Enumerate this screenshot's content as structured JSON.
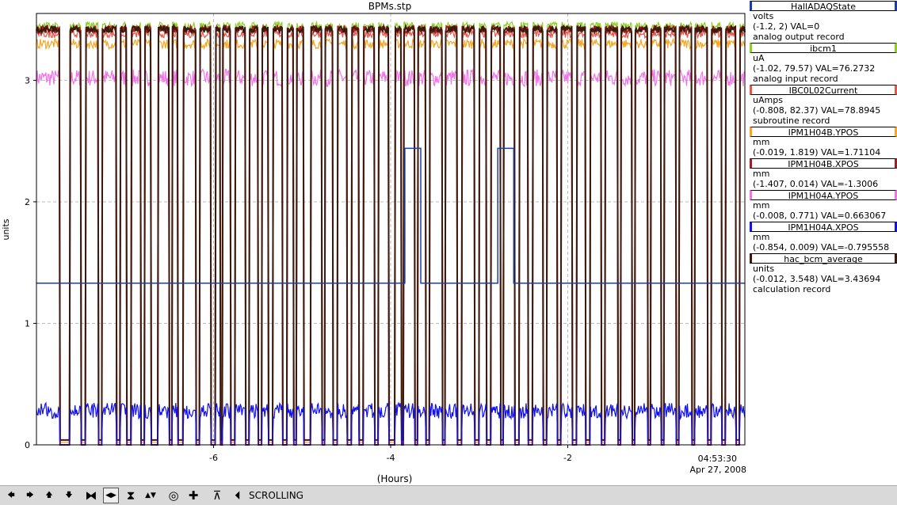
{
  "chart_data": {
    "type": "line",
    "title": "BPMs.stp",
    "xlabel": "(Hours)",
    "ylabel": "units",
    "xlim": [
      -8.0,
      0.0
    ],
    "ylim": [
      0.0,
      3.55
    ],
    "x_ticks": [
      -6,
      -4,
      -2
    ],
    "x_tick_labels": [
      "-6",
      "-4",
      "-2"
    ],
    "y_ticks": [
      0,
      1,
      2,
      3
    ],
    "y_tick_labels": [
      "0",
      "1",
      "2",
      "3"
    ],
    "end_time": "04:53:30",
    "end_date": "Apr 27, 2008",
    "grid": true,
    "legend_position": "right",
    "series": [
      {
        "name": "HallADAQState",
        "color": "#1a3fa8",
        "units": "volts",
        "range": "(-1.2, 2)",
        "val": "VAL=0",
        "record": "analog output record",
        "steps": [
          [
            -8.0,
            1.33
          ],
          [
            -3.84,
            1.33
          ],
          [
            -3.84,
            2.44
          ],
          [
            -3.66,
            2.44
          ],
          [
            -3.66,
            1.33
          ],
          [
            -2.79,
            1.33
          ],
          [
            -2.79,
            2.44
          ],
          [
            -2.61,
            2.44
          ],
          [
            -2.61,
            1.33
          ],
          [
            0.0,
            1.33
          ]
        ]
      },
      {
        "name": "ibcm1",
        "color": "#8cd023",
        "units": "uA",
        "range": "(-1.02, 79.57)",
        "val": "VAL=76.2732",
        "record": "analog input record",
        "level": 3.45
      },
      {
        "name": "IBC0L02Current",
        "color": "#e8564b",
        "units": "uAmps",
        "range": "(-0.808, 82.37)",
        "val": "VAL=78.8945",
        "record": "subroutine record",
        "level": 3.38
      },
      {
        "name": "IPM1H04B.YPOS",
        "color": "#f5a623",
        "units": "mm",
        "range": "(-0.019, 1.819)",
        "val": "VAL=1.71104",
        "record": "",
        "level": 3.3
      },
      {
        "name": "IPM1H04B.XPOS",
        "color": "#a01f1f",
        "units": "mm",
        "range": "(-1.407, 0.014)",
        "val": "VAL=-1.3006",
        "record": "",
        "level": 3.42
      },
      {
        "name": "IPM1H04A.YPOS",
        "color": "#f075e8",
        "units": "mm",
        "range": "(-0.008, 0.771)",
        "val": "VAL=0.663067",
        "record": "",
        "level": 3.02
      },
      {
        "name": "IPM1H04A.XPOS",
        "color": "#1111ee",
        "units": "mm",
        "range": "(-0.854, 0.009)",
        "val": "VAL=-0.795558",
        "record": "",
        "level": 0.28
      },
      {
        "name": "hac_bcm_average",
        "color": "#3b1a0e",
        "units": "units",
        "range": "(-0.012, 3.548)",
        "val": "VAL=3.43694",
        "record": "calculation record",
        "level": 3.42
      }
    ],
    "beam_trips": [
      [
        -7.74,
        -7.62
      ],
      [
        -7.5,
        -7.44
      ],
      [
        -7.3,
        -7.26
      ],
      [
        -7.1,
        -7.05
      ],
      [
        -6.98,
        -6.93
      ],
      [
        -6.82,
        -6.78
      ],
      [
        -6.71,
        -6.63
      ],
      [
        -6.5,
        -6.47
      ],
      [
        -6.4,
        -6.34
      ],
      [
        -6.2,
        -6.16
      ],
      [
        -6.03,
        -5.98
      ],
      [
        -5.92,
        -5.9
      ],
      [
        -5.81,
        -5.76
      ],
      [
        -5.64,
        -5.6
      ],
      [
        -5.5,
        -5.45
      ],
      [
        -5.38,
        -5.33
      ],
      [
        -5.22,
        -5.17
      ],
      [
        -5.1,
        -5.06
      ],
      [
        -4.98,
        -4.9
      ],
      [
        -4.78,
        -4.74
      ],
      [
        -4.65,
        -4.6
      ],
      [
        -4.49,
        -4.44
      ],
      [
        -4.36,
        -4.31
      ],
      [
        -4.18,
        -4.14
      ],
      [
        -4.02,
        -3.95
      ],
      [
        -3.88,
        -3.85
      ],
      [
        -3.73,
        -3.69
      ],
      [
        -3.6,
        -3.56
      ],
      [
        -3.42,
        -3.38
      ],
      [
        -3.25,
        -3.2
      ],
      [
        -3.05,
        -3.0
      ],
      [
        -2.92,
        -2.87
      ],
      [
        -2.76,
        -2.72
      ],
      [
        -2.6,
        -2.55
      ],
      [
        -2.45,
        -2.4
      ],
      [
        -2.28,
        -2.24
      ],
      [
        -2.12,
        -2.08
      ],
      [
        -1.95,
        -1.9
      ],
      [
        -1.8,
        -1.75
      ],
      [
        -1.62,
        -1.58
      ],
      [
        -1.44,
        -1.4
      ],
      [
        -1.28,
        -1.24
      ],
      [
        -1.1,
        -1.06
      ],
      [
        -0.95,
        -0.91
      ],
      [
        -0.78,
        -0.74
      ],
      [
        -0.6,
        -0.56
      ],
      [
        -0.42,
        -0.38
      ],
      [
        -0.26,
        -0.22
      ],
      [
        -0.1,
        -0.06
      ]
    ]
  },
  "toolbar": {
    "buttons": [
      {
        "name": "pan-left-button",
        "icon": "arrow-left-icon",
        "glyph": "🡄",
        "selected": false
      },
      {
        "name": "pan-right-button",
        "icon": "arrow-right-icon",
        "glyph": "🡆",
        "selected": false
      },
      {
        "name": "pan-up-button",
        "icon": "arrow-up-icon",
        "glyph": "🡅",
        "selected": false
      },
      {
        "name": "pan-down-button",
        "icon": "arrow-down-icon",
        "glyph": "🡇",
        "selected": false
      },
      {
        "name": "zoom-in-x-button",
        "icon": "zoom-in-x-icon",
        "glyph": "⧓",
        "selected": false
      },
      {
        "name": "zoom-out-x-button",
        "icon": "zoom-out-x-icon",
        "glyph": "◀▶",
        "selected": true
      },
      {
        "name": "zoom-in-y-button",
        "icon": "zoom-in-y-icon",
        "glyph": "⧗",
        "selected": false
      },
      {
        "name": "zoom-out-y-button",
        "icon": "zoom-out-y-icon",
        "glyph": "▲▼",
        "selected": false
      },
      {
        "name": "autoscale-button",
        "icon": "autoscale-icon",
        "glyph": "◎",
        "selected": false
      },
      {
        "name": "reset-button",
        "icon": "crosshair-icon",
        "glyph": "✚",
        "selected": false
      },
      {
        "name": "stagger-button",
        "icon": "stagger-icon",
        "glyph": "⊼",
        "selected": false
      },
      {
        "name": "scroll-mode-button",
        "icon": "scroll-mode-icon",
        "glyph": "⏴",
        "selected": false
      }
    ],
    "mode_label": "SCROLLING"
  }
}
